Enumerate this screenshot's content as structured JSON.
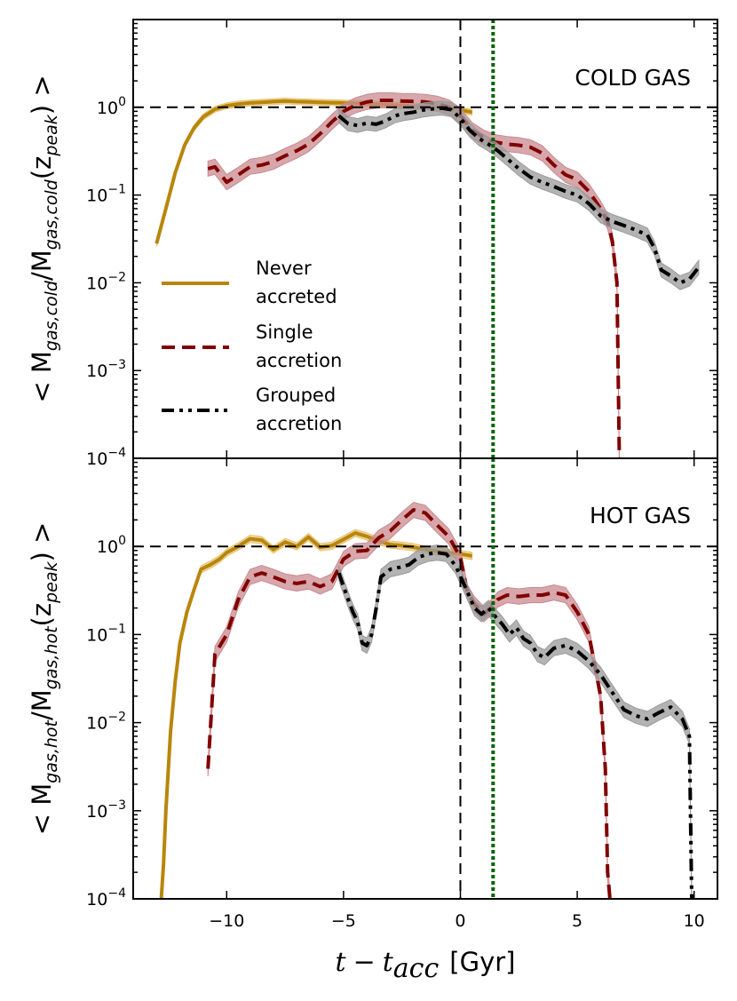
{
  "chart_data": {
    "type": "line",
    "shared": {
      "xlabel": "t − t_acc [Gyr]",
      "xlabel_parts": {
        "var": "t",
        "minus": "−",
        "sub_var": "t",
        "sub": "acc",
        "unit": "[Gyr]"
      },
      "xlim": [
        -14,
        11
      ],
      "xticks": [
        -10,
        -5,
        0,
        5,
        10
      ],
      "xtick_labels": [
        "−10",
        "−5",
        "0",
        "5",
        "10"
      ],
      "yscale": "log",
      "ylim": [
        0.0001,
        10
      ],
      "ytick_exps": [
        -4,
        -3,
        -2,
        -1,
        0
      ],
      "ytick_base": "10",
      "ytick_exp_labels": [
        "−4",
        "−3",
        "−2",
        "−1",
        "0"
      ],
      "reference_lines": [
        {
          "name": "y=1",
          "axis": "y",
          "value": 1,
          "style": "dashed",
          "color": "#000000"
        },
        {
          "name": "t_acc",
          "axis": "x",
          "value": 0,
          "style": "dashed",
          "color": "#000000"
        },
        {
          "name": "green-marker",
          "axis": "x",
          "value": 1.4,
          "style": "dotted",
          "color": "#006400"
        }
      ]
    },
    "colors": {
      "never": "#B8860B",
      "never_band": "#E8C577",
      "single": "#800000",
      "single_band": "#C98A8F",
      "grouped": "#000000",
      "grouped_band": "#9A9A9A"
    },
    "legend": {
      "location": "center-left of top panel",
      "entries": [
        {
          "key": "never",
          "line1": "Never",
          "line2": "accreted",
          "style": "solid"
        },
        {
          "key": "single",
          "line1": "Single",
          "line2": "accretion",
          "style": "dashed"
        },
        {
          "key": "grouped",
          "line1": "Grouped",
          "line2": "accretion",
          "style": "dashdot"
        }
      ]
    },
    "panels": [
      {
        "id": "cold",
        "title": "COLD GAS",
        "ylabel": "< M_gas,cold / M_gas,cold(z_peak) >",
        "ylabel_parts": {
          "pre": "< M",
          "sub1": "gas,cold",
          "mid": "/M",
          "sub2": "gas,cold",
          "post": "(z",
          "sub3": "peak",
          "end": ") >"
        },
        "series": [
          {
            "key": "never",
            "name": "Never accreted",
            "x": [
              -13.0,
              -12.6,
              -12.2,
              -11.8,
              -11.4,
              -11.0,
              -10.5,
              -10.0,
              -9.5,
              -9.0,
              -8.5,
              -8.0,
              -7.5,
              -7.0,
              -6.5,
              -6.0,
              -5.5,
              -5.0,
              -4.5,
              -4.0,
              -3.5,
              -3.0,
              -2.5,
              -2.0,
              -1.5,
              -1.0,
              -0.5,
              0.0,
              0.5
            ],
            "y": [
              0.028,
              0.07,
              0.18,
              0.37,
              0.58,
              0.78,
              0.95,
              1.04,
              1.09,
              1.12,
              1.14,
              1.16,
              1.18,
              1.16,
              1.15,
              1.14,
              1.13,
              1.12,
              1.11,
              1.1,
              1.08,
              1.06,
              1.05,
              1.03,
              1.02,
              1.0,
              0.98,
              0.93,
              0.88
            ],
            "band": 0.08
          },
          {
            "key": "single",
            "name": "Single accretion",
            "x": [
              -10.8,
              -10.5,
              -10.0,
              -9.5,
              -9.0,
              -8.5,
              -8.0,
              -7.5,
              -7.0,
              -6.5,
              -6.0,
              -5.5,
              -5.0,
              -4.5,
              -4.0,
              -3.5,
              -3.0,
              -2.5,
              -2.0,
              -1.5,
              -1.0,
              -0.5,
              0.0,
              0.5,
              1.0,
              1.5,
              2.0,
              2.5,
              3.0,
              3.5,
              4.0,
              4.5,
              5.0,
              5.5,
              6.0,
              6.3,
              6.5,
              6.7,
              6.8
            ],
            "y": [
              0.2,
              0.21,
              0.14,
              0.17,
              0.21,
              0.22,
              0.24,
              0.28,
              0.32,
              0.38,
              0.5,
              0.68,
              0.9,
              1.05,
              1.15,
              1.2,
              1.2,
              1.18,
              1.17,
              1.15,
              1.1,
              1.0,
              0.8,
              0.55,
              0.45,
              0.4,
              0.38,
              0.37,
              0.35,
              0.3,
              0.22,
              0.17,
              0.15,
              0.11,
              0.07,
              0.05,
              0.03,
              0.01,
              0.0001
            ],
            "band": 0.22
          },
          {
            "key": "grouped",
            "name": "Grouped accretion",
            "x": [
              -5.2,
              -4.8,
              -4.4,
              -4.0,
              -3.6,
              -3.2,
              -2.8,
              -2.4,
              -2.0,
              -1.6,
              -1.2,
              -0.8,
              -0.4,
              0.0,
              0.4,
              0.8,
              1.2,
              1.6,
              2.0,
              2.5,
              3.0,
              3.5,
              4.0,
              4.5,
              5.0,
              5.5,
              6.0,
              6.5,
              7.0,
              7.5,
              8.0,
              8.3,
              8.6,
              9.0,
              9.4,
              9.8,
              10.2
            ],
            "y": [
              0.8,
              0.65,
              0.62,
              0.66,
              0.64,
              0.7,
              0.8,
              0.85,
              0.88,
              0.93,
              0.96,
              0.98,
              0.94,
              0.75,
              0.55,
              0.44,
              0.38,
              0.32,
              0.26,
              0.2,
              0.16,
              0.14,
              0.125,
              0.11,
              0.1,
              0.08,
              0.058,
              0.05,
              0.045,
              0.04,
              0.035,
              0.025,
              0.014,
              0.012,
              0.01,
              0.011,
              0.015
            ],
            "band": 0.2
          }
        ]
      },
      {
        "id": "hot",
        "title": "HOT GAS",
        "ylabel": "< M_gas,hot / M_gas,hot(z_peak) >",
        "ylabel_parts": {
          "pre": "< M",
          "sub1": "gas,hot",
          "mid": "/M",
          "sub2": "gas,hot",
          "post": "(z",
          "sub3": "peak",
          "end": ") >"
        },
        "series": [
          {
            "key": "never",
            "name": "Never accreted",
            "x": [
              -12.8,
              -12.7,
              -12.6,
              -12.4,
              -12.2,
              -12.0,
              -11.7,
              -11.4,
              -11.1,
              -10.7,
              -10.3,
              -10.0,
              -9.5,
              -9.0,
              -8.5,
              -8.0,
              -7.5,
              -7.0,
              -6.5,
              -6.0,
              -5.5,
              -5.0,
              -4.5,
              -4.0,
              -3.5,
              -3.0,
              -2.5,
              -2.0,
              -1.5,
              -1.0,
              -0.5,
              0.0,
              0.5
            ],
            "y": [
              0.0001,
              0.00025,
              0.001,
              0.008,
              0.03,
              0.08,
              0.18,
              0.32,
              0.55,
              0.62,
              0.72,
              0.85,
              1.0,
              1.22,
              1.18,
              0.92,
              1.12,
              1.0,
              1.28,
              0.98,
              1.02,
              1.2,
              1.42,
              1.3,
              1.15,
              1.05,
              1.02,
              0.98,
              0.92,
              0.88,
              0.85,
              0.82,
              0.78
            ],
            "band": 0.1
          },
          {
            "key": "single",
            "name": "Single accretion",
            "x": [
              -10.8,
              -10.5,
              -10.0,
              -9.5,
              -9.0,
              -8.5,
              -8.0,
              -7.5,
              -7.0,
              -6.5,
              -6.0,
              -5.5,
              -5.0,
              -4.5,
              -4.0,
              -3.5,
              -3.0,
              -2.5,
              -2.0,
              -1.5,
              -1.0,
              -0.5,
              0.0,
              0.3,
              0.6,
              1.0,
              1.3,
              1.6,
              2.0,
              2.5,
              3.0,
              3.5,
              4.0,
              4.5,
              5.0,
              5.5,
              6.0,
              6.2,
              6.3,
              6.4
            ],
            "y": [
              0.003,
              0.06,
              0.1,
              0.25,
              0.45,
              0.5,
              0.45,
              0.4,
              0.38,
              0.4,
              0.35,
              0.4,
              0.72,
              0.88,
              0.9,
              1.25,
              1.5,
              2.0,
              2.6,
              2.4,
              1.75,
              1.3,
              0.75,
              0.3,
              0.22,
              0.17,
              0.2,
              0.25,
              0.28,
              0.27,
              0.28,
              0.28,
              0.3,
              0.28,
              0.18,
              0.1,
              0.02,
              0.003,
              0.0002,
              0.0001
            ],
            "band": 0.22
          },
          {
            "key": "grouped",
            "name": "Grouped accretion",
            "x": [
              -5.2,
              -5.0,
              -4.8,
              -4.6,
              -4.4,
              -4.2,
              -4.0,
              -3.8,
              -3.6,
              -3.4,
              -3.0,
              -2.6,
              -2.2,
              -1.8,
              -1.4,
              -1.0,
              -0.6,
              -0.2,
              0.2,
              0.6,
              0.9,
              1.2,
              1.5,
              1.8,
              2.1,
              2.4,
              2.7,
              3.0,
              3.3,
              3.6,
              4.0,
              4.5,
              5.0,
              5.5,
              6.0,
              6.5,
              7.0,
              7.5,
              8.0,
              8.5,
              9.0,
              9.5,
              9.8,
              9.9
            ],
            "y": [
              0.5,
              0.35,
              0.25,
              0.18,
              0.14,
              0.08,
              0.075,
              0.1,
              0.2,
              0.45,
              0.55,
              0.58,
              0.62,
              0.75,
              0.82,
              0.85,
              0.82,
              0.6,
              0.35,
              0.2,
              0.17,
              0.2,
              0.16,
              0.13,
              0.1,
              0.12,
              0.09,
              0.08,
              0.06,
              0.055,
              0.07,
              0.075,
              0.065,
              0.05,
              0.035,
              0.022,
              0.014,
              0.012,
              0.011,
              0.013,
              0.015,
              0.011,
              0.007,
              0.0001
            ],
            "band": 0.22
          }
        ]
      }
    ]
  }
}
